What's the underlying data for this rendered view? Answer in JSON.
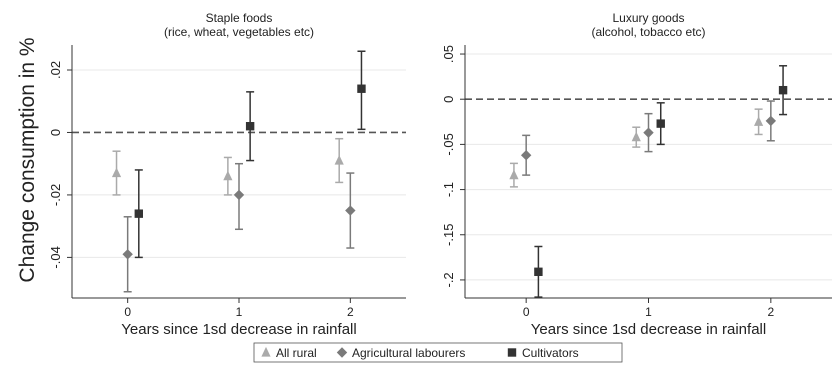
{
  "figure": {
    "ylabel": "Change consumption in %",
    "legend": {
      "position": "bottom-center",
      "items": [
        {
          "name": "All rural",
          "symbol": "triangle",
          "color": "#aaaaaa"
        },
        {
          "name": "Agricultural labourers",
          "symbol": "diamond",
          "color": "#7a7a7a"
        },
        {
          "name": "Cultivators",
          "symbol": "square",
          "color": "#333333"
        }
      ]
    }
  },
  "chart_data": [
    {
      "type": "scatter",
      "title": "Staple foods",
      "subtitle": "(rice, wheat, vegetables etc)",
      "xlabel": "Years since 1sd decrease in rainfall",
      "x_ticks": [
        "0",
        "1",
        "2"
      ],
      "y_ticks": [
        0.02,
        0,
        -0.02,
        -0.04
      ],
      "y_tick_labels": [
        ".02",
        "0",
        "-.02",
        "-.04"
      ],
      "ylim": [
        -0.053,
        0.028
      ],
      "reference_line": 0,
      "grid": true,
      "series": [
        {
          "name": "All rural",
          "x": [
            0,
            1,
            2
          ],
          "y": [
            -0.013,
            -0.014,
            -0.009
          ],
          "ci_low": [
            -0.02,
            -0.02,
            -0.016
          ],
          "ci_high": [
            -0.006,
            -0.008,
            -0.002
          ]
        },
        {
          "name": "Agricultural labourers",
          "x": [
            0,
            1,
            2
          ],
          "y": [
            -0.039,
            -0.02,
            -0.025
          ],
          "ci_low": [
            -0.051,
            -0.031,
            -0.037
          ],
          "ci_high": [
            -0.027,
            -0.01,
            -0.013
          ]
        },
        {
          "name": "Cultivators",
          "x": [
            0,
            1,
            2
          ],
          "y": [
            -0.026,
            0.002,
            0.014
          ],
          "ci_low": [
            -0.04,
            -0.009,
            0.001
          ],
          "ci_high": [
            -0.012,
            0.013,
            0.026
          ]
        }
      ]
    },
    {
      "type": "scatter",
      "title": "Luxury goods",
      "subtitle": "(alcohol,  tobacco etc)",
      "xlabel": "Years since 1sd decrease in rainfall",
      "x_ticks": [
        "0",
        "1",
        "2"
      ],
      "y_ticks": [
        0.05,
        0,
        -0.05,
        -0.1,
        -0.15,
        -0.2
      ],
      "y_tick_labels": [
        ".05",
        "0",
        "-.05",
        "-.1",
        "-.15",
        "-.2"
      ],
      "ylim": [
        -0.22,
        0.06
      ],
      "reference_line": 0,
      "grid": true,
      "series": [
        {
          "name": "All rural",
          "x": [
            0,
            1,
            2
          ],
          "y": [
            -0.084,
            -0.042,
            -0.025
          ],
          "ci_low": [
            -0.097,
            -0.053,
            -0.039
          ],
          "ci_high": [
            -0.071,
            -0.031,
            -0.011
          ]
        },
        {
          "name": "Agricultural labourers",
          "x": [
            0,
            1,
            2
          ],
          "y": [
            -0.062,
            -0.037,
            -0.024
          ],
          "ci_low": [
            -0.084,
            -0.058,
            -0.046
          ],
          "ci_high": [
            -0.04,
            -0.016,
            -0.002
          ]
        },
        {
          "name": "Cultivators",
          "x": [
            0,
            1,
            2
          ],
          "y": [
            -0.191,
            -0.027,
            0.01
          ],
          "ci_low": [
            -0.219,
            -0.05,
            -0.017
          ],
          "ci_high": [
            -0.163,
            -0.004,
            0.037
          ]
        }
      ]
    }
  ]
}
